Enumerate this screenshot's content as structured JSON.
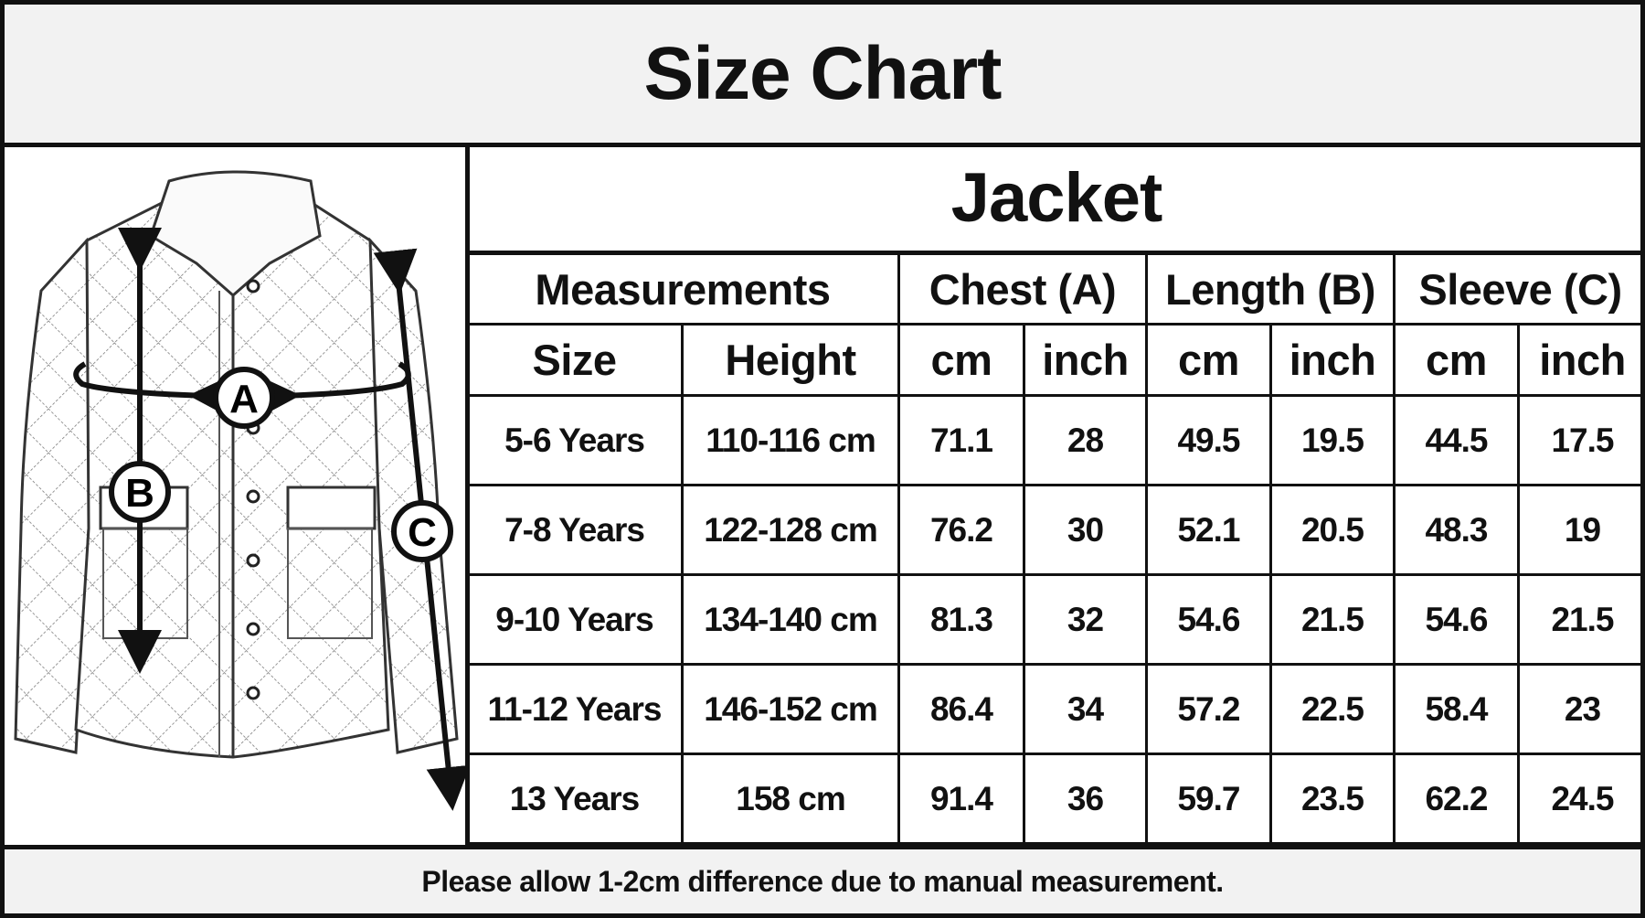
{
  "title": "Size Chart",
  "table": {
    "product": "Jacket",
    "group_headers": [
      "Measurements",
      "Chest (A)",
      "Length (B)",
      "Sleeve (C)"
    ],
    "sub_headers": [
      "Size",
      "Height",
      "cm",
      "inch",
      "cm",
      "inch",
      "cm",
      "inch"
    ],
    "rows": [
      [
        "5-6 Years",
        "110-116 cm",
        "71.1",
        "28",
        "49.5",
        "19.5",
        "44.5",
        "17.5"
      ],
      [
        "7-8 Years",
        "122-128 cm",
        "76.2",
        "30",
        "52.1",
        "20.5",
        "48.3",
        "19"
      ],
      [
        "9-10 Years",
        "134-140 cm",
        "81.3",
        "32",
        "54.6",
        "21.5",
        "54.6",
        "21.5"
      ],
      [
        "11-12 Years",
        "146-152 cm",
        "86.4",
        "34",
        "57.2",
        "22.5",
        "58.4",
        "23"
      ],
      [
        "13 Years",
        "158 cm",
        "91.4",
        "36",
        "59.7",
        "23.5",
        "62.2",
        "24.5"
      ]
    ]
  },
  "diagram": {
    "labels": [
      "A",
      "B",
      "C"
    ]
  },
  "footer": "Please allow 1-2cm difference due to manual measurement."
}
